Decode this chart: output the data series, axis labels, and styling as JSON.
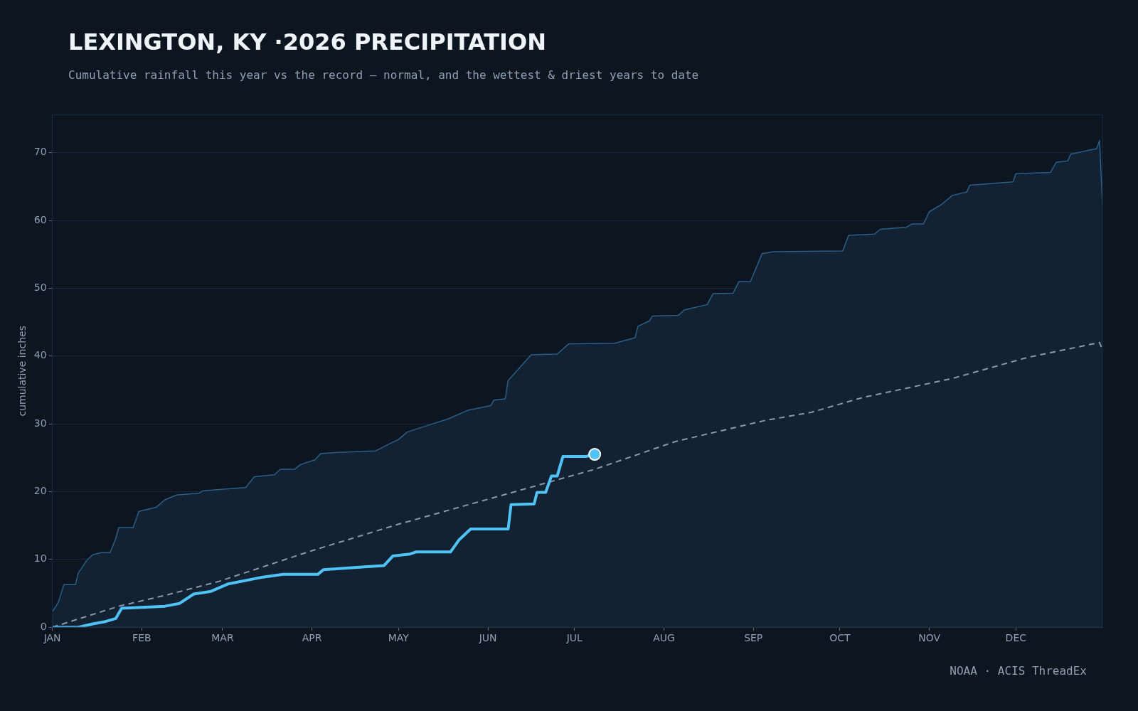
{
  "chart_data": {
    "type": "line",
    "title": "LEXINGTON, KY ·2026 PRECIPITATION",
    "subtitle": "Cumulative rainfall this year vs the record — normal, and the wettest & driest years to date",
    "ylabel": "cumulative inches",
    "annotations": [
      "NOAA · ACIS ThreadEx"
    ],
    "xlim": [
      "--01-01",
      "--12-31"
    ],
    "xticks": [
      {
        "value": "--01-01",
        "label": "JAN"
      },
      {
        "value": "--02-01",
        "label": "FEB"
      },
      {
        "value": "--03-01",
        "label": "MAR"
      },
      {
        "value": "--04-01",
        "label": "APR"
      },
      {
        "value": "--05-01",
        "label": "MAY"
      },
      {
        "value": "--06-01",
        "label": "JUN"
      },
      {
        "value": "--07-01",
        "label": "JUL"
      },
      {
        "value": "--08-01",
        "label": "AUG"
      },
      {
        "value": "--09-01",
        "label": "SEP"
      },
      {
        "value": "--10-01",
        "label": "OCT"
      },
      {
        "value": "--11-01",
        "label": "NOV"
      },
      {
        "value": "--12-01",
        "label": "DEC"
      }
    ],
    "ylim": [
      0,
      75.6
    ],
    "yticks": [
      0,
      10,
      20,
      30,
      40,
      50,
      60,
      70
    ],
    "grid": "y",
    "legend": false,
    "series": [
      {
        "type": "area",
        "color": "#2a5f8a",
        "x": [
          "--01-01",
          "--01-03",
          "--01-05",
          "--01-09",
          "--01-10",
          "--01-13",
          "--01-15",
          "--01-18",
          "--01-21",
          "--01-23",
          "--01-24",
          "--01-29",
          "--01-31",
          "--02-06",
          "--02-09",
          "--02-13",
          "--02-21",
          "--02-22",
          "--02-27",
          "--03-09",
          "--03-12",
          "--03-19",
          "--03-21",
          "--03-26",
          "--03-28",
          "--04-02",
          "--04-04",
          "--04-10",
          "--04-23",
          "--04-28",
          "--05-01",
          "--05-04",
          "--05-12",
          "--05-18",
          "--05-25",
          "--06-02",
          "--06-03",
          "--06-07",
          "--06-08",
          "--06-12",
          "--06-16",
          "--06-25",
          "--06-29",
          "--07-15",
          "--07-22",
          "--07-23",
          "--07-27",
          "--07-28",
          "--08-06",
          "--08-08",
          "--08-16",
          "--08-18",
          "--08-25",
          "--08-27",
          "--08-31",
          "--09-04",
          "--09-08",
          "--10-02",
          "--10-04",
          "--10-13",
          "--10-15",
          "--10-24",
          "--10-26",
          "--10-30",
          "--11-01",
          "--11-05",
          "--11-09",
          "--11-14",
          "--11-15",
          "--11-30",
          "--12-01",
          "--12-13",
          "--12-15",
          "--12-19",
          "--12-20",
          "--12-29",
          "--12-30",
          "--12-31"
        ],
        "values": [
          2.3,
          3.6,
          6.3,
          6.3,
          8.0,
          9.9,
          10.7,
          11.0,
          11.0,
          13.1,
          14.7,
          14.7,
          17.1,
          17.7,
          18.8,
          19.5,
          19.8,
          20.1,
          20.3,
          20.6,
          22.2,
          22.5,
          23.3,
          23.3,
          24.0,
          24.7,
          25.6,
          25.8,
          26.0,
          27.1,
          27.7,
          28.8,
          29.9,
          30.7,
          32.0,
          32.7,
          33.5,
          33.7,
          36.4,
          38.3,
          40.2,
          40.3,
          41.8,
          41.9,
          42.7,
          44.4,
          45.2,
          45.9,
          46.0,
          46.8,
          47.6,
          49.2,
          49.3,
          51.0,
          51.0,
          55.1,
          55.4,
          55.5,
          57.8,
          58.0,
          58.7,
          59.0,
          59.5,
          59.5,
          61.3,
          62.3,
          63.7,
          64.2,
          65.2,
          65.7,
          66.9,
          67.1,
          68.6,
          68.8,
          69.8,
          70.6,
          71.8,
          62.4
        ]
      },
      {
        "type": "line",
        "color": "#8a98a8",
        "line_style": "dashed",
        "x": [
          "--01-01",
          "--01-24",
          "--02-10",
          "--02-28",
          "--04-01",
          "--05-01",
          "--06-02",
          "--07-08",
          "--08-05",
          "--09-05",
          "--09-21",
          "--10-09",
          "--11-09",
          "--12-05",
          "--12-30",
          "--12-31"
        ],
        "values": [
          0,
          3.1,
          4.8,
          6.8,
          11.3,
          15.2,
          19.0,
          23.3,
          27.4,
          30.5,
          31.7,
          33.9,
          36.7,
          39.8,
          42.0,
          40.9
        ]
      },
      {
        "type": "line",
        "color": "#4fc3f7",
        "x": [
          "--01-01",
          "--01-10",
          "--01-15",
          "--01-19",
          "--01-23",
          "--01-25",
          "--02-09",
          "--02-14",
          "--02-19",
          "--02-25",
          "--03-03",
          "--03-15",
          "--03-22",
          "--04-03",
          "--04-05",
          "--04-12",
          "--04-26",
          "--04-29",
          "--05-05",
          "--05-07",
          "--05-19",
          "--05-22",
          "--05-26",
          "--06-08",
          "--06-09",
          "--06-17",
          "--06-18",
          "--06-21",
          "--06-23",
          "--06-25",
          "--06-27",
          "--07-05",
          "--07-08"
        ],
        "values": [
          0,
          0,
          0.5,
          0.8,
          1.3,
          2.8,
          3.1,
          3.5,
          4.9,
          5.3,
          6.4,
          7.4,
          7.8,
          7.8,
          8.5,
          8.7,
          9.1,
          10.5,
          10.8,
          11.1,
          11.1,
          12.9,
          14.5,
          14.5,
          18.1,
          18.2,
          19.9,
          19.9,
          22.3,
          22.3,
          25.2,
          25.2,
          25.5
        ]
      },
      {
        "type": "scatter",
        "color": "#4fc3f7",
        "marker": "circle",
        "x": [
          "--07-08"
        ],
        "values": [
          25.5
        ]
      }
    ]
  }
}
